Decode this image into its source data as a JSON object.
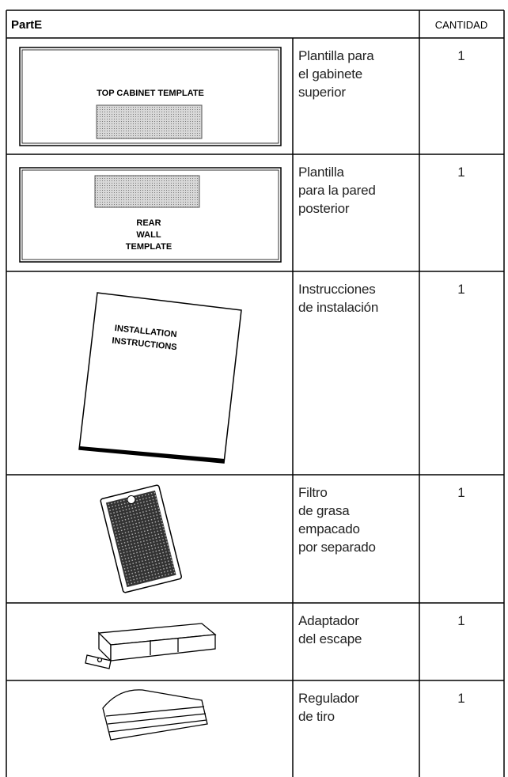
{
  "header": {
    "part": "PartE",
    "quantity": "CANTIDAD"
  },
  "rows": [
    {
      "image_text": [
        "TOP CABINET TEMPLATE"
      ],
      "description": [
        "Plantilla para",
        "el gabinete",
        "superior"
      ],
      "quantity": 1
    },
    {
      "image_text": [
        "REAR",
        "WALL",
        "TEMPLATE"
      ],
      "description": [
        "Plantilla",
        "para la pared",
        "posterior"
      ],
      "quantity": 1
    },
    {
      "image_text": [
        "INSTALLATION",
        "INSTRUCTIONS"
      ],
      "description": [
        "Instrucciones",
        "de instalación"
      ],
      "quantity": 1
    },
    {
      "description": [
        "Filtro",
        "de grasa",
        "empacado",
        "por separado"
      ],
      "quantity": 1
    },
    {
      "description": [
        "Adaptador",
        "del escape"
      ],
      "quantity": 1
    },
    {
      "description": [
        "Regulador",
        "de tiro"
      ],
      "quantity": 1
    }
  ]
}
